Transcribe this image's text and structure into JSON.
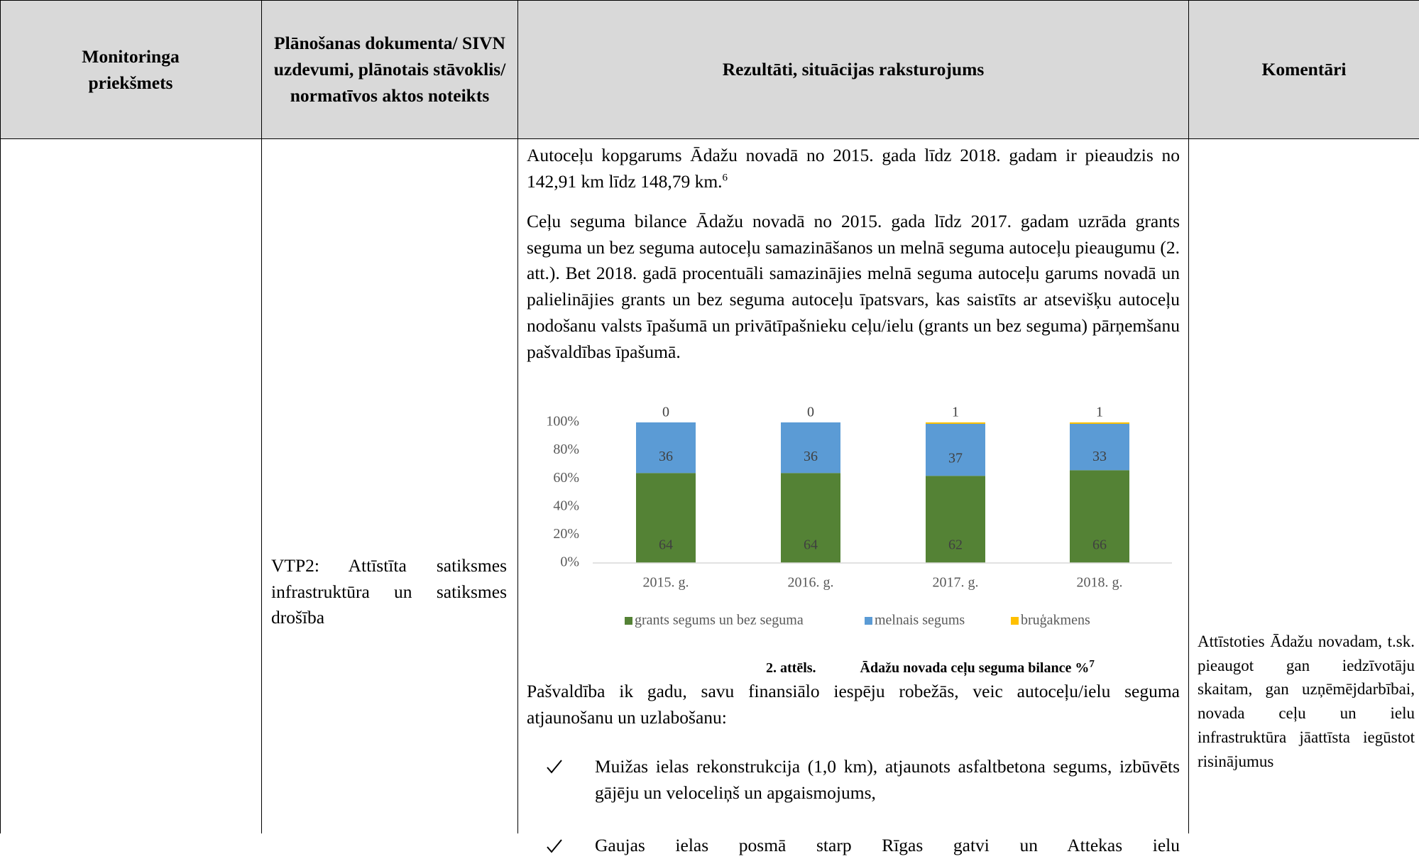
{
  "table": {
    "header": [
      "Monitoringa priekšmets",
      "Plānošanas dokumenta/ SIVN uzdevumi, plānotais stāvoklis/ normatīvos aktos noteikts",
      "Rezultāti, situācijas raksturojums",
      "Komentāri"
    ],
    "task": "VTP2: Attīstīta satiksmes infrastruktūra un satiksmes drošība",
    "results": {
      "paragraphs": [
        {
          "text": "Autoceļu kopgarums Ādažu novadā no 2015. gada līdz 2018. gadam ir pieaudzis no 142,91 km līdz 148,79 km.",
          "footnote": "6"
        },
        {
          "text": "Ceļu seguma bilance Ādažu novadā no 2015. gada līdz 2017. gadam uzrāda grants seguma un bez seguma autoceļu samazināšanos un melnā seguma autoceļu pieaugumu (2. att.). Bet 2018. gadā procentuāli samazinājies melnā seguma autoceļu garums novadā un palielinājies grants un bez seguma autoceļu īpatsvars, kas saistīts ar atsevišķu autoceļu nodošanu valsts īpašumā un privātīpašnieku ceļu/ielu (grants un bez seguma) pārņemšanu pašvaldības īpašumā."
        }
      ],
      "figure": {
        "type": "bar",
        "stacked": true,
        "categories": [
          "2015. g.",
          "2016. g.",
          "2017. g.",
          "2018. g."
        ],
        "series": [
          {
            "name": "grants segums un bez seguma",
            "color": "#548235",
            "values": [
              64,
              64,
              62,
              66
            ]
          },
          {
            "name": "melnais segums",
            "color": "#5b9bd5",
            "values": [
              36,
              36,
              37,
              33
            ]
          },
          {
            "name": "bruģakmens",
            "color": "#ffc000",
            "values": [
              0,
              0,
              1,
              1
            ]
          }
        ],
        "ylim": [
          0,
          100
        ],
        "yticks": [
          {
            "value": 0,
            "label": "0%"
          },
          {
            "value": 20,
            "label": "20%"
          },
          {
            "value": 40,
            "label": "40%"
          },
          {
            "value": 60,
            "label": "60%"
          },
          {
            "value": 80,
            "label": "80%"
          },
          {
            "value": 100,
            "label": "100%"
          }
        ],
        "legend": "bottom",
        "grid": false
      },
      "caption": {
        "number": "2. attēls.",
        "text": "Ādažu novada ceļu seguma bilance %",
        "footnote": "7"
      },
      "intro": "Pašvaldība ik gadu, savu finansiālo iespēju robežās, veic autoceļu/ielu seguma atjaunošanu un uzlabošanu:",
      "list": [
        "Muižas ielas rekonstrukcija (1,0 km), atjaunots asfaltbetona segums, izbūvēts gājēju un veloceliņš un apgaismojums,",
        "Gaujas ielas posmā starp Rīgas gatvi un Attekas ielu"
      ]
    },
    "comment": "Attīstoties Ādažu novadam, t.sk. pieaugot gan iedzīvotāju skaitam, gan uzņēmējdarbībai, novada ceļu un ielu infrastruktūra jāattīsta iegūstot risinājumus"
  }
}
